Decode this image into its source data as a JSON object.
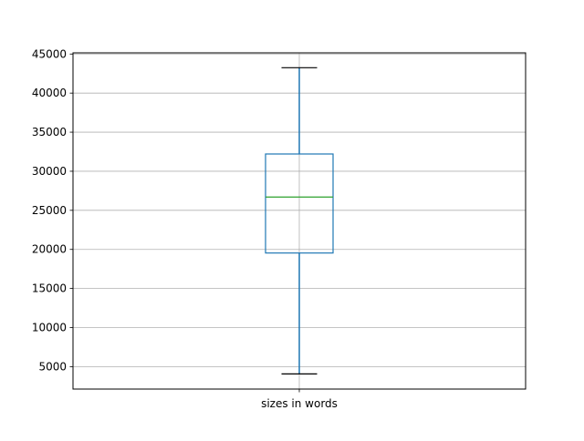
{
  "chart_data": {
    "type": "box",
    "title": "",
    "xlabel": "",
    "ylabel": "",
    "categories": [
      "sizes in words"
    ],
    "boxes": [
      {
        "category": "sizes in words",
        "whisker_low": 4070,
        "q1": 19540,
        "median": 26700,
        "q3": 32210,
        "whisker_high": 43250
      }
    ],
    "ylim": [
      2130,
      45150
    ],
    "yticks": [
      5000,
      10000,
      15000,
      20000,
      25000,
      30000,
      35000,
      40000,
      45000
    ],
    "grid": true,
    "colors": {
      "box": "#1f77b4",
      "median": "#2ca02c",
      "caps": "#000000",
      "grid": "#b0b0b0"
    }
  }
}
